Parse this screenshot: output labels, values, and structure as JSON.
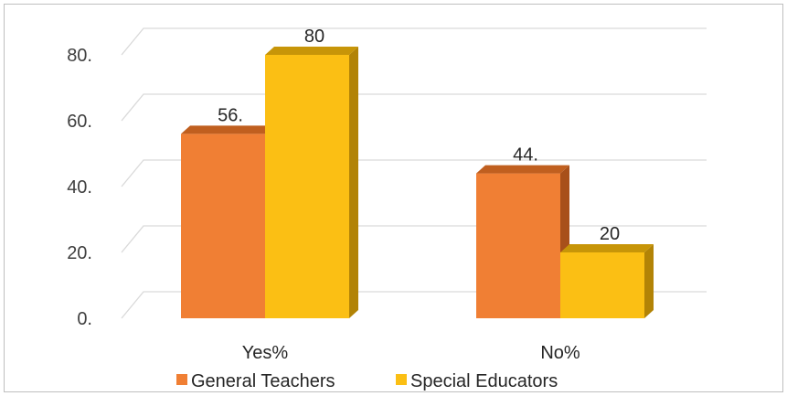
{
  "chart_data": {
    "type": "bar",
    "style": "3d-clustered-column",
    "categories": [
      "Yes%",
      "No%"
    ],
    "series": [
      {
        "name": "General Teachers",
        "values": [
          56,
          44
        ],
        "labels": [
          "56.",
          "44."
        ],
        "color": "#f07f34",
        "top_color": "#c05f1f",
        "side_color": "#a8501a"
      },
      {
        "name": "Special Educators",
        "values": [
          80,
          20
        ],
        "labels": [
          "80",
          "20"
        ],
        "color": "#fbbf14",
        "top_color": "#c79508",
        "side_color": "#b28306"
      }
    ],
    "y_ticks": [
      0,
      20,
      40,
      60,
      80
    ],
    "y_tick_labels": [
      "0.",
      "20.",
      "40.",
      "60.",
      "80."
    ],
    "ylim": [
      0,
      88
    ],
    "grid": true,
    "legend_position": "bottom"
  }
}
